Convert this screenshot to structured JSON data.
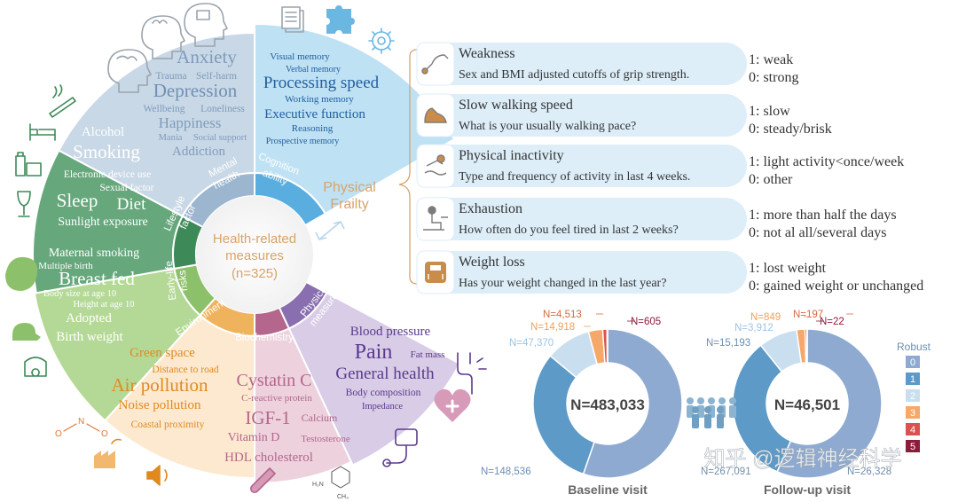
{
  "wheel": {
    "center": {
      "title": "Health-related measures",
      "line1": "Health-related",
      "line2": "measures",
      "count": "(n=325)"
    },
    "categories": {
      "mental": {
        "line1": "Mental",
        "line2": "health",
        "color": "#9db6cf"
      },
      "cognition": {
        "line1": "Cognition",
        "line2": "ability",
        "color": "#5aaedf"
      },
      "lifestyle": {
        "line1": "Lifestyle",
        "line2": "factor",
        "color": "#3d8a58"
      },
      "early": {
        "line1": "Early-life",
        "line2": "risks",
        "color": "#8cc06a"
      },
      "environment": {
        "label": "Environment",
        "color": "#f0b35d"
      },
      "biochemistry": {
        "label": "Biochemistry",
        "color": "#b4668c"
      },
      "physical": {
        "line1": "Physical",
        "line2": "measure",
        "color": "#8a6fb0"
      }
    },
    "mental_items": [
      "Anxiety",
      "Trauma",
      "Self-harm",
      "Depression",
      "Wellbeing",
      "Loneliness",
      "Happiness",
      "Mania",
      "Social support",
      "Addiction"
    ],
    "cognition_items": [
      "Visual memory",
      "Verbal memory",
      "Processing speed",
      "Working memory",
      "Executive function",
      "Reasoning",
      "Prospective memory"
    ],
    "lifestyle_items": [
      "Alcohol",
      "Smoking",
      "Electronic device use",
      "Sexual factor",
      "Sleep",
      "Diet",
      "Sunlight exposure"
    ],
    "early_items": [
      "Maternal smoking",
      "Multiple birth",
      "Breast fed",
      "Body size at age 10",
      "Height at age 10",
      "Adopted",
      "Birth weight"
    ],
    "environment_items": [
      "Green space",
      "Distance to road",
      "Air pollution",
      "Noise pollution",
      "Coastal proximity"
    ],
    "biochem_items": [
      "Cystatin C",
      "C-reactive protein",
      "IGF-1",
      "Calcium",
      "Vitamin D",
      "Testosterone",
      "HDL cholesterol"
    ],
    "physical_items": [
      "Blood pressure",
      "Pain",
      "Fat mass",
      "General health",
      "Body composition",
      "Impedance"
    ]
  },
  "frailty": {
    "label_line1": "Physical",
    "label_line2": "Frailty",
    "criteria": [
      {
        "title": "Weakness",
        "question": "Sex and BMI adjusted cutoffs of grip strength.",
        "code1": "1: weak",
        "code0": "0: strong",
        "icon": "grip-strength-icon"
      },
      {
        "title": "Slow walking speed",
        "question": "What is your usually walking pace?",
        "code1": "1: slow",
        "code0": "0: steady/brisk",
        "icon": "shoe-icon"
      },
      {
        "title": "Physical inactivity",
        "question": "Type and frequency of activity in last 4 weeks.",
        "code1": "1: light activity<once/week",
        "code0": "0: other",
        "icon": "swimmer-icon"
      },
      {
        "title": "Exhaustion",
        "question": "How often do you feel tired in last 2 weeks?",
        "code1": "1: more than half the days",
        "code0": "0: not al all/several days",
        "icon": "tired-person-icon"
      },
      {
        "title": "Weight loss",
        "question": "Has your weight changed in the last year?",
        "code1": "1: lost weight",
        "code0": "0: gained weight or unchanged",
        "icon": "scale-icon"
      }
    ]
  },
  "chart_data": [
    {
      "type": "pie",
      "title": "Baseline visit",
      "center_label": "N=483,033",
      "categories": [
        "0",
        "1",
        "2",
        "3",
        "4",
        "5"
      ],
      "values": [
        267091,
        148536,
        47370,
        14918,
        4513,
        605
      ],
      "labels": [
        "N=267,091",
        "N=148,536",
        "N=47,370",
        "N=14,918",
        "N=4,513",
        "N=605"
      ]
    },
    {
      "type": "pie",
      "title": "Follow-up visit",
      "center_label": "N=46,501",
      "categories": [
        "0",
        "1",
        "2",
        "3",
        "4",
        "5"
      ],
      "values": [
        26328,
        15193,
        3912,
        849,
        197,
        22
      ],
      "labels": [
        "N=26,328",
        "N=15,193",
        "N=3,912",
        "N=849",
        "N=197",
        "N=22"
      ]
    }
  ],
  "legend": {
    "title": "Robust",
    "items": [
      "0",
      "1",
      "2",
      "3",
      "4",
      "5"
    ],
    "colors": [
      "#8eaad0",
      "#5d9ac7",
      "#c9dff0",
      "#f5a86a",
      "#d9534f",
      "#8b1c3a"
    ]
  },
  "watermark": "知乎 @逻辑神经科学"
}
